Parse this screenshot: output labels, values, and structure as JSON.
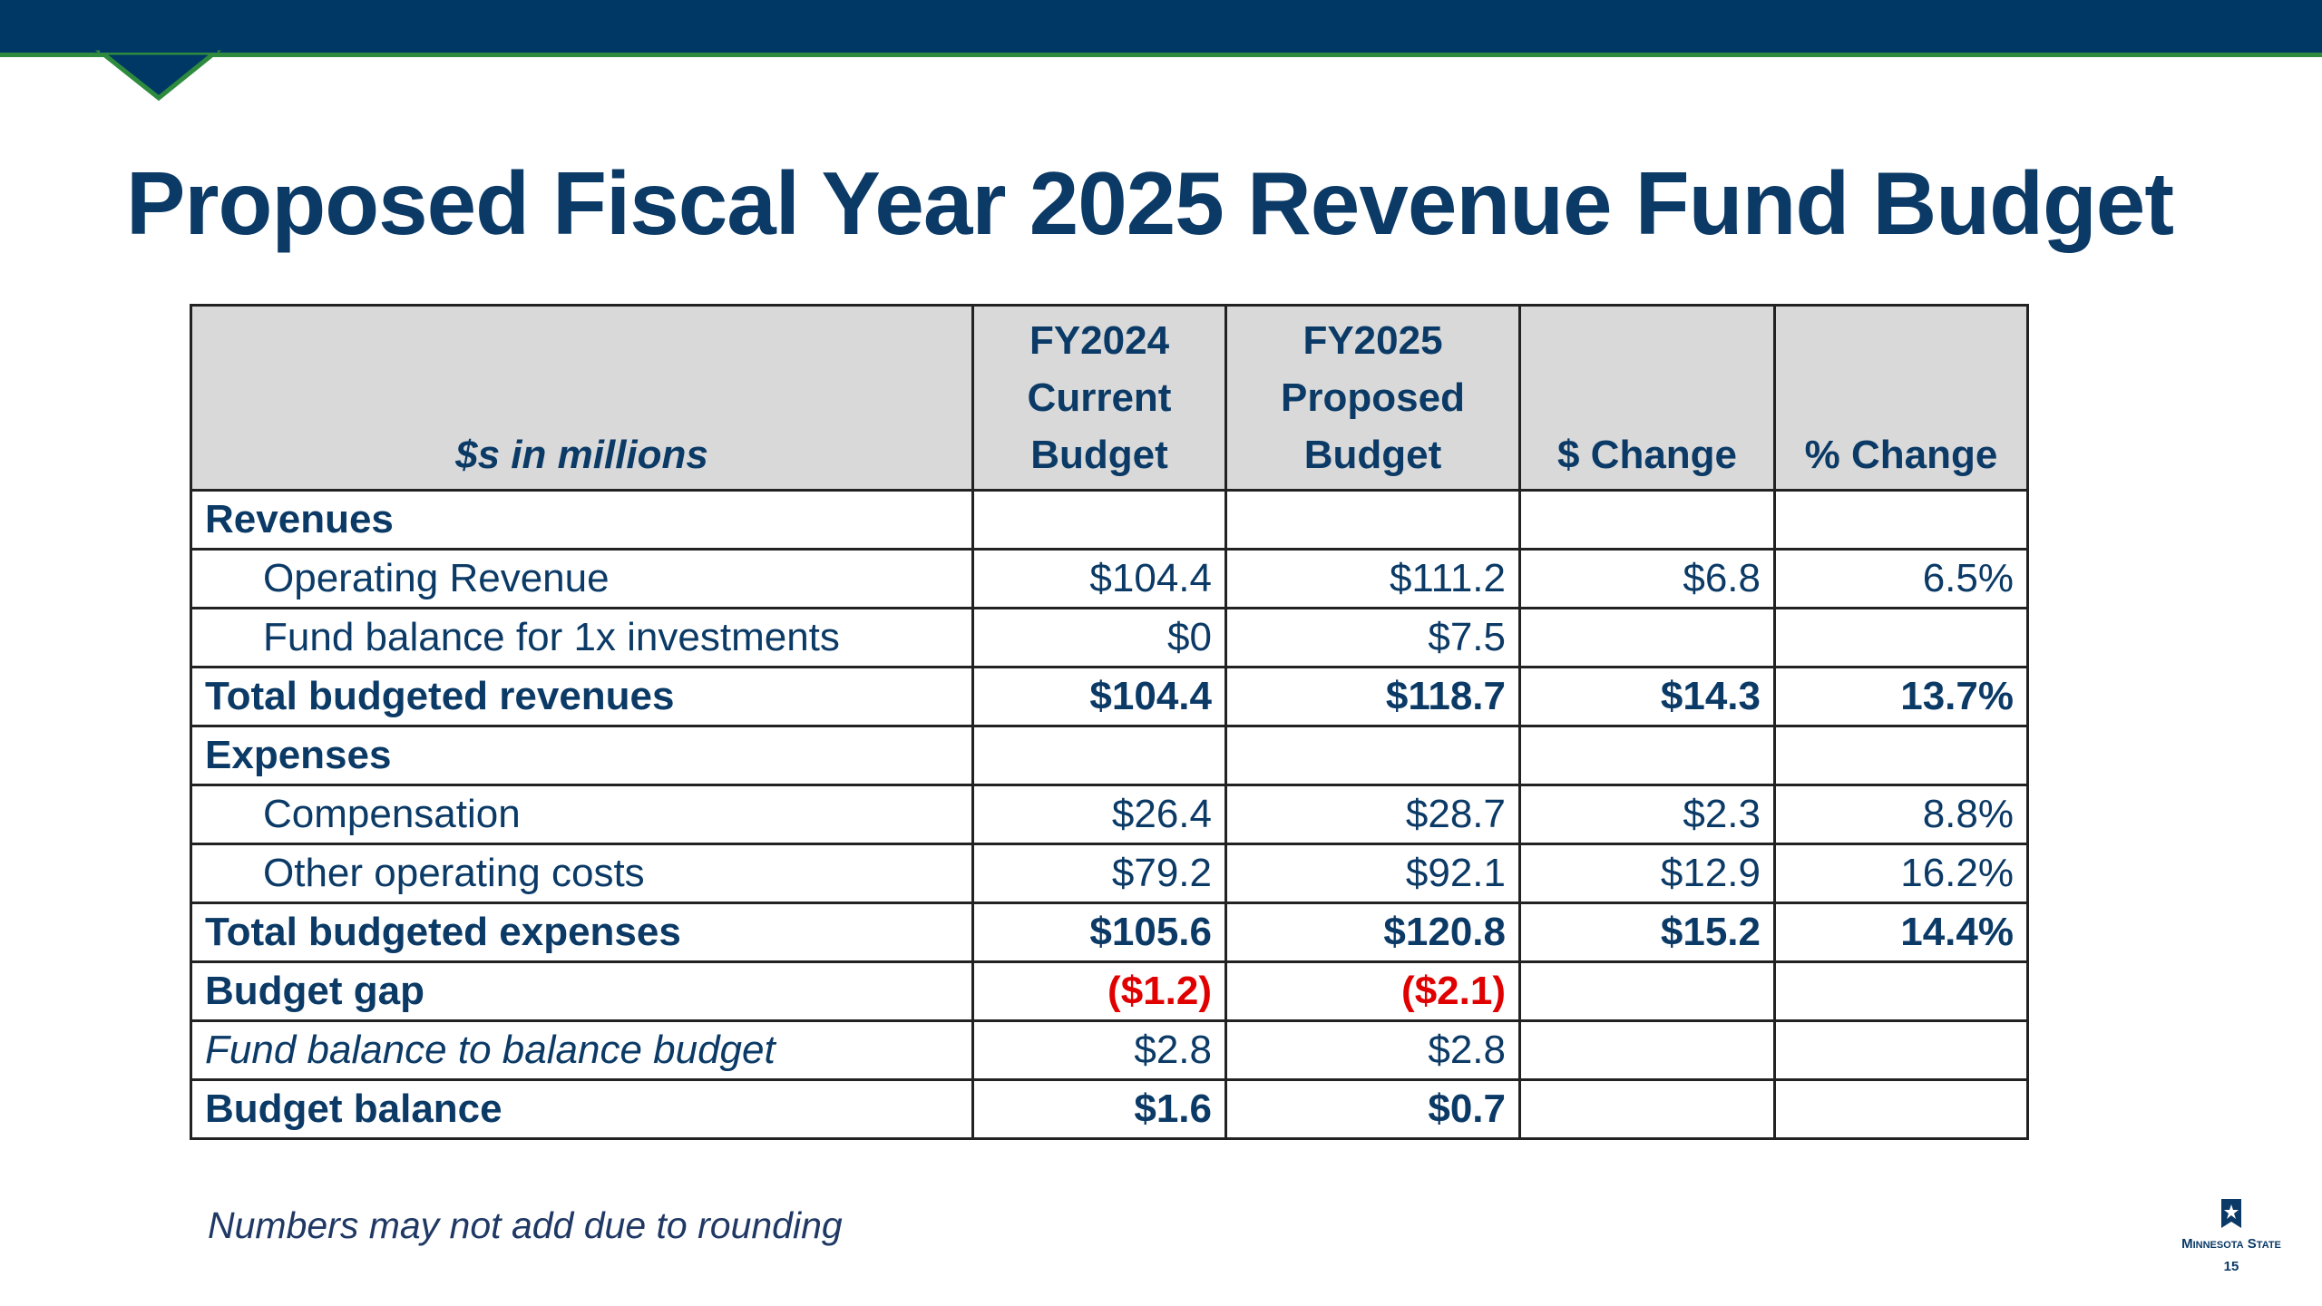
{
  "title": "Proposed Fiscal Year 2025 Revenue Fund Budget",
  "table": {
    "header": [
      "$s in millions",
      "FY2024 Current Budget",
      "FY2025 Proposed Budget",
      "$ Change",
      "% Change"
    ],
    "rows": [
      [
        "Revenues",
        null,
        null,
        null,
        null
      ],
      [
        "Operating Revenue",
        "$104.4",
        "$111.2",
        "$6.8",
        "6.5%"
      ],
      [
        "Fund balance for 1x investments",
        "$0",
        "$7.5",
        null,
        null
      ],
      [
        "Total budgeted revenues",
        "$104.4",
        "$118.7",
        "$14.3",
        "13.7%"
      ],
      [
        "Expenses",
        null,
        null,
        null,
        null
      ],
      [
        "Compensation",
        "$26.4",
        "$28.7",
        "$2.3",
        "8.8%"
      ],
      [
        "Other operating costs",
        "$79.2",
        "$92.1",
        "$12.9",
        "16.2%"
      ],
      [
        "Total budgeted expenses",
        "$105.6",
        "$120.8",
        "$15.2",
        "14.4%"
      ],
      [
        "Budget gap",
        "($1.2)",
        "($2.1)",
        null,
        null
      ],
      [
        "Fund balance to balance budget",
        "$2.8",
        "$2.8",
        null,
        null
      ],
      [
        "Budget balance",
        "$1.6",
        "$0.7",
        null,
        null
      ]
    ]
  },
  "footnote": "Numbers may not add due to rounding",
  "logo": "Minnesota State",
  "page_number": "15"
}
